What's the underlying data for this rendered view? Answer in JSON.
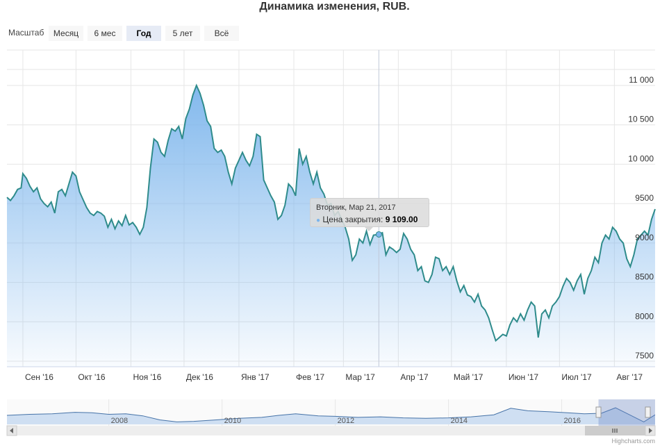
{
  "chart_data": {
    "type": "area",
    "title": "Динамика изменения, RUB.",
    "range_selector": {
      "label": "Масштаб",
      "buttons": [
        {
          "label": "Месяц",
          "active": false
        },
        {
          "label": "6 мес",
          "active": false
        },
        {
          "label": "Год",
          "active": true
        },
        {
          "label": "5 лет",
          "active": false
        },
        {
          "label": "Всё",
          "active": false
        }
      ]
    },
    "xlabel": "",
    "ylabel": "",
    "x_range": [
      "2016-08-23",
      "2017-08-24"
    ],
    "ylim": [
      7500,
      11000
    ],
    "y_ticks": [
      {
        "value": 7500,
        "label": "7500"
      },
      {
        "value": 8000,
        "label": "8000"
      },
      {
        "value": 8500,
        "label": "8500"
      },
      {
        "value": 9000,
        "label": "9000"
      },
      {
        "value": 9500,
        "label": "9500"
      },
      {
        "value": 10000,
        "label": "10 000"
      },
      {
        "value": 10500,
        "label": "10 500"
      },
      {
        "value": 11000,
        "label": "11 000"
      }
    ],
    "x_ticks": [
      {
        "date": "2016-09-01",
        "label": "Сен '16"
      },
      {
        "date": "2016-10-01",
        "label": "Окт '16"
      },
      {
        "date": "2016-11-01",
        "label": "Ноя '16"
      },
      {
        "date": "2016-12-01",
        "label": "Дек '16"
      },
      {
        "date": "2017-01-01",
        "label": "Янв '17"
      },
      {
        "date": "2017-02-01",
        "label": "Фев '17"
      },
      {
        "date": "2017-03-01",
        "label": "Мар '17"
      },
      {
        "date": "2017-04-01",
        "label": "Апр '17"
      },
      {
        "date": "2017-05-01",
        "label": "Май '17"
      },
      {
        "date": "2017-06-01",
        "label": "Июн '17"
      },
      {
        "date": "2017-07-01",
        "label": "Июл '17"
      },
      {
        "date": "2017-08-01",
        "label": "Авг '17"
      }
    ],
    "series": [
      {
        "name": "Цена закрытия",
        "color": "#2e8b8b",
        "fill_color": "#7cb5ec",
        "points": [
          [
            "2016-08-23",
            9580
          ],
          [
            "2016-08-25",
            9540
          ],
          [
            "2016-08-27",
            9600
          ],
          [
            "2016-08-29",
            9680
          ],
          [
            "2016-08-31",
            9700
          ],
          [
            "2016-09-01",
            9880
          ],
          [
            "2016-09-03",
            9820
          ],
          [
            "2016-09-05",
            9720
          ],
          [
            "2016-09-07",
            9650
          ],
          [
            "2016-09-09",
            9700
          ],
          [
            "2016-09-11",
            9560
          ],
          [
            "2016-09-13",
            9500
          ],
          [
            "2016-09-15",
            9460
          ],
          [
            "2016-09-17",
            9520
          ],
          [
            "2016-09-19",
            9380
          ],
          [
            "2016-09-21",
            9650
          ],
          [
            "2016-09-23",
            9680
          ],
          [
            "2016-09-25",
            9600
          ],
          [
            "2016-09-27",
            9750
          ],
          [
            "2016-09-29",
            9900
          ],
          [
            "2016-10-01",
            9850
          ],
          [
            "2016-10-03",
            9650
          ],
          [
            "2016-10-05",
            9550
          ],
          [
            "2016-10-07",
            9450
          ],
          [
            "2016-10-09",
            9380
          ],
          [
            "2016-10-11",
            9350
          ],
          [
            "2016-10-13",
            9400
          ],
          [
            "2016-10-15",
            9380
          ],
          [
            "2016-10-17",
            9340
          ],
          [
            "2016-10-19",
            9200
          ],
          [
            "2016-10-21",
            9300
          ],
          [
            "2016-10-23",
            9180
          ],
          [
            "2016-10-25",
            9280
          ],
          [
            "2016-10-27",
            9220
          ],
          [
            "2016-10-29",
            9350
          ],
          [
            "2016-10-31",
            9230
          ],
          [
            "2016-11-02",
            9260
          ],
          [
            "2016-11-04",
            9200
          ],
          [
            "2016-11-06",
            9110
          ],
          [
            "2016-11-08",
            9200
          ],
          [
            "2016-11-10",
            9450
          ],
          [
            "2016-11-12",
            9950
          ],
          [
            "2016-11-14",
            10320
          ],
          [
            "2016-11-16",
            10280
          ],
          [
            "2016-11-18",
            10150
          ],
          [
            "2016-11-20",
            10100
          ],
          [
            "2016-11-22",
            10300
          ],
          [
            "2016-11-24",
            10450
          ],
          [
            "2016-11-26",
            10420
          ],
          [
            "2016-11-28",
            10480
          ],
          [
            "2016-11-30",
            10320
          ],
          [
            "2016-12-02",
            10580
          ],
          [
            "2016-12-04",
            10700
          ],
          [
            "2016-12-06",
            10880
          ],
          [
            "2016-12-08",
            11000
          ],
          [
            "2016-12-10",
            10900
          ],
          [
            "2016-12-12",
            10750
          ],
          [
            "2016-12-14",
            10550
          ],
          [
            "2016-12-16",
            10480
          ],
          [
            "2016-12-18",
            10200
          ],
          [
            "2016-12-20",
            10150
          ],
          [
            "2016-12-22",
            10180
          ],
          [
            "2016-12-24",
            10100
          ],
          [
            "2016-12-26",
            9900
          ],
          [
            "2016-12-28",
            9750
          ],
          [
            "2016-12-30",
            9950
          ],
          [
            "2017-01-01",
            10050
          ],
          [
            "2017-01-03",
            10150
          ],
          [
            "2017-01-05",
            10050
          ],
          [
            "2017-01-07",
            9980
          ],
          [
            "2017-01-09",
            10100
          ],
          [
            "2017-01-11",
            10380
          ],
          [
            "2017-01-13",
            10350
          ],
          [
            "2017-01-15",
            9800
          ],
          [
            "2017-01-17",
            9700
          ],
          [
            "2017-01-19",
            9600
          ],
          [
            "2017-01-21",
            9520
          ],
          [
            "2017-01-23",
            9300
          ],
          [
            "2017-01-25",
            9350
          ],
          [
            "2017-01-27",
            9480
          ],
          [
            "2017-01-29",
            9750
          ],
          [
            "2017-01-31",
            9700
          ],
          [
            "2017-02-02",
            9600
          ],
          [
            "2017-02-04",
            10200
          ],
          [
            "2017-02-06",
            10000
          ],
          [
            "2017-02-08",
            10100
          ],
          [
            "2017-02-10",
            9900
          ],
          [
            "2017-02-12",
            9750
          ],
          [
            "2017-02-14",
            9900
          ],
          [
            "2017-02-16",
            9700
          ],
          [
            "2017-02-18",
            9620
          ],
          [
            "2017-02-20",
            9480
          ],
          [
            "2017-02-22",
            9500
          ],
          [
            "2017-02-24",
            9350
          ],
          [
            "2017-02-26",
            9400
          ],
          [
            "2017-02-28",
            9300
          ],
          [
            "2017-03-02",
            9200
          ],
          [
            "2017-03-04",
            9050
          ],
          [
            "2017-03-06",
            8780
          ],
          [
            "2017-03-08",
            8850
          ],
          [
            "2017-03-10",
            9050
          ],
          [
            "2017-03-12",
            9000
          ],
          [
            "2017-03-14",
            9150
          ],
          [
            "2017-03-16",
            8980
          ],
          [
            "2017-03-18",
            9100
          ],
          [
            "2017-03-21",
            9109
          ],
          [
            "2017-03-23",
            9130
          ],
          [
            "2017-03-25",
            8850
          ],
          [
            "2017-03-27",
            8950
          ],
          [
            "2017-03-29",
            8920
          ],
          [
            "2017-03-31",
            8880
          ],
          [
            "2017-04-02",
            8920
          ],
          [
            "2017-04-04",
            9120
          ],
          [
            "2017-04-06",
            9050
          ],
          [
            "2017-04-08",
            8920
          ],
          [
            "2017-04-10",
            8850
          ],
          [
            "2017-04-12",
            8650
          ],
          [
            "2017-04-14",
            8700
          ],
          [
            "2017-04-16",
            8520
          ],
          [
            "2017-04-18",
            8500
          ],
          [
            "2017-04-20",
            8600
          ],
          [
            "2017-04-22",
            8820
          ],
          [
            "2017-04-24",
            8800
          ],
          [
            "2017-04-26",
            8650
          ],
          [
            "2017-04-28",
            8700
          ],
          [
            "2017-04-30",
            8600
          ],
          [
            "2017-05-02",
            8700
          ],
          [
            "2017-05-04",
            8520
          ],
          [
            "2017-05-06",
            8380
          ],
          [
            "2017-05-08",
            8460
          ],
          [
            "2017-05-10",
            8340
          ],
          [
            "2017-05-12",
            8320
          ],
          [
            "2017-05-14",
            8250
          ],
          [
            "2017-05-16",
            8350
          ],
          [
            "2017-05-18",
            8200
          ],
          [
            "2017-05-20",
            8150
          ],
          [
            "2017-05-22",
            8050
          ],
          [
            "2017-05-24",
            7900
          ],
          [
            "2017-05-26",
            7760
          ],
          [
            "2017-05-28",
            7800
          ],
          [
            "2017-05-30",
            7840
          ],
          [
            "2017-06-01",
            7820
          ],
          [
            "2017-06-03",
            7960
          ],
          [
            "2017-06-05",
            8050
          ],
          [
            "2017-06-07",
            8000
          ],
          [
            "2017-06-09",
            8100
          ],
          [
            "2017-06-11",
            8020
          ],
          [
            "2017-06-13",
            8150
          ],
          [
            "2017-06-15",
            8250
          ],
          [
            "2017-06-17",
            8200
          ],
          [
            "2017-06-19",
            7800
          ],
          [
            "2017-06-21",
            8100
          ],
          [
            "2017-06-23",
            8150
          ],
          [
            "2017-06-25",
            8050
          ],
          [
            "2017-06-27",
            8200
          ],
          [
            "2017-06-29",
            8250
          ],
          [
            "2017-07-01",
            8320
          ],
          [
            "2017-07-03",
            8450
          ],
          [
            "2017-07-05",
            8550
          ],
          [
            "2017-07-07",
            8500
          ],
          [
            "2017-07-09",
            8400
          ],
          [
            "2017-07-11",
            8520
          ],
          [
            "2017-07-13",
            8600
          ],
          [
            "2017-07-15",
            8350
          ],
          [
            "2017-07-17",
            8550
          ],
          [
            "2017-07-19",
            8650
          ],
          [
            "2017-07-21",
            8820
          ],
          [
            "2017-07-23",
            8750
          ],
          [
            "2017-07-25",
            9000
          ],
          [
            "2017-07-27",
            9100
          ],
          [
            "2017-07-29",
            9050
          ],
          [
            "2017-07-31",
            9200
          ],
          [
            "2017-08-02",
            9150
          ],
          [
            "2017-08-04",
            9050
          ],
          [
            "2017-08-06",
            9000
          ],
          [
            "2017-08-08",
            8800
          ],
          [
            "2017-08-10",
            8700
          ],
          [
            "2017-08-12",
            8850
          ],
          [
            "2017-08-14",
            9050
          ],
          [
            "2017-08-16",
            9100
          ],
          [
            "2017-08-18",
            9150
          ],
          [
            "2017-08-20",
            9100
          ],
          [
            "2017-08-22",
            9300
          ],
          [
            "2017-08-24",
            9430
          ]
        ]
      }
    ],
    "tooltip": {
      "date_label": "Вторник, Мар 21, 2017",
      "series_label": "Цена закрытия:",
      "value_label": "9 109.00",
      "date": "2017-03-21",
      "value": 9109
    },
    "navigator": {
      "x_range": [
        2006.2,
        2017.65
      ],
      "selection": [
        2016.65,
        2017.65
      ],
      "ticks": [
        {
          "year": 2008,
          "label": "2008"
        },
        {
          "year": 2010,
          "label": "2010"
        },
        {
          "year": 2012,
          "label": "2012"
        },
        {
          "year": 2014,
          "label": "2014"
        },
        {
          "year": 2016,
          "label": "2016"
        }
      ],
      "series": [
        [
          2006.2,
          9300
        ],
        [
          2006.6,
          9500
        ],
        [
          2007.0,
          9600
        ],
        [
          2007.4,
          9900
        ],
        [
          2007.7,
          9800
        ],
        [
          2008.0,
          9500
        ],
        [
          2008.3,
          9600
        ],
        [
          2008.6,
          9200
        ],
        [
          2008.9,
          8400
        ],
        [
          2009.2,
          8000
        ],
        [
          2009.5,
          8100
        ],
        [
          2009.9,
          8400
        ],
        [
          2010.3,
          8700
        ],
        [
          2010.7,
          8900
        ],
        [
          2011.0,
          9300
        ],
        [
          2011.3,
          9600
        ],
        [
          2011.7,
          9200
        ],
        [
          2012.0,
          9100
        ],
        [
          2012.4,
          8900
        ],
        [
          2012.8,
          9000
        ],
        [
          2013.2,
          8800
        ],
        [
          2013.6,
          8700
        ],
        [
          2014.0,
          8800
        ],
        [
          2014.4,
          9000
        ],
        [
          2014.8,
          9400
        ],
        [
          2015.1,
          10700
        ],
        [
          2015.4,
          10200
        ],
        [
          2015.8,
          10000
        ],
        [
          2016.1,
          9800
        ],
        [
          2016.4,
          9600
        ],
        [
          2016.7,
          9700
        ],
        [
          2016.95,
          10800
        ],
        [
          2017.2,
          9400
        ],
        [
          2017.45,
          8000
        ],
        [
          2017.65,
          9400
        ]
      ]
    },
    "credits": "Highcharts.com"
  }
}
